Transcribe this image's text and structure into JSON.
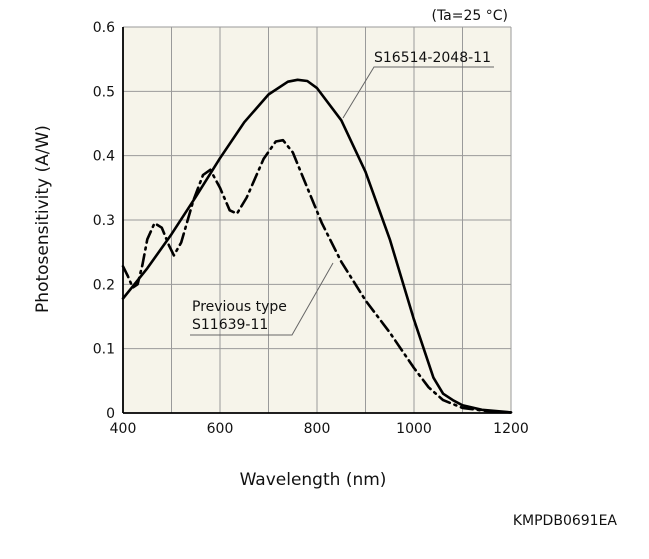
{
  "chart_data": {
    "type": "line",
    "title": "",
    "condition_note": "(Ta=25 °C)",
    "xlabel": "Wavelength (nm)",
    "ylabel": "Photosensitivity (A/W)",
    "xlim": [
      400,
      1200
    ],
    "ylim": [
      0,
      0.6
    ],
    "x_ticks": [
      "400",
      "600",
      "800",
      "1000",
      "1200"
    ],
    "y_ticks": [
      "0",
      "0.1",
      "0.2",
      "0.3",
      "0.4",
      "0.5",
      "0.6"
    ],
    "grid": true,
    "series": [
      {
        "name": "S16514-2048-11",
        "style": "solid",
        "color": "#000000",
        "points": [
          [
            400,
            0.178
          ],
          [
            450,
            0.225
          ],
          [
            500,
            0.278
          ],
          [
            550,
            0.336
          ],
          [
            600,
            0.396
          ],
          [
            650,
            0.452
          ],
          [
            700,
            0.495
          ],
          [
            740,
            0.515
          ],
          [
            760,
            0.518
          ],
          [
            780,
            0.516
          ],
          [
            800,
            0.505
          ],
          [
            850,
            0.455
          ],
          [
            900,
            0.375
          ],
          [
            950,
            0.27
          ],
          [
            1000,
            0.145
          ],
          [
            1040,
            0.055
          ],
          [
            1060,
            0.03
          ],
          [
            1080,
            0.02
          ],
          [
            1100,
            0.012
          ],
          [
            1140,
            0.005
          ],
          [
            1200,
            0.001
          ]
        ]
      },
      {
        "name": "S11639-11",
        "label_line1": "Previous type",
        "label_line2": "S11639-11",
        "style": "dash-dot",
        "color": "#000000",
        "points": [
          [
            400,
            0.228
          ],
          [
            410,
            0.213
          ],
          [
            420,
            0.195
          ],
          [
            430,
            0.2
          ],
          [
            440,
            0.23
          ],
          [
            450,
            0.27
          ],
          [
            465,
            0.295
          ],
          [
            480,
            0.288
          ],
          [
            495,
            0.26
          ],
          [
            505,
            0.245
          ],
          [
            520,
            0.265
          ],
          [
            545,
            0.33
          ],
          [
            565,
            0.37
          ],
          [
            580,
            0.378
          ],
          [
            600,
            0.35
          ],
          [
            620,
            0.315
          ],
          [
            635,
            0.31
          ],
          [
            655,
            0.335
          ],
          [
            690,
            0.395
          ],
          [
            715,
            0.422
          ],
          [
            730,
            0.424
          ],
          [
            750,
            0.405
          ],
          [
            780,
            0.35
          ],
          [
            810,
            0.295
          ],
          [
            850,
            0.235
          ],
          [
            900,
            0.175
          ],
          [
            950,
            0.125
          ],
          [
            1000,
            0.07
          ],
          [
            1030,
            0.04
          ],
          [
            1060,
            0.02
          ],
          [
            1100,
            0.008
          ],
          [
            1150,
            0.003
          ],
          [
            1200,
            0.001
          ]
        ]
      }
    ]
  },
  "footer_code": "KMPDB0691EA"
}
